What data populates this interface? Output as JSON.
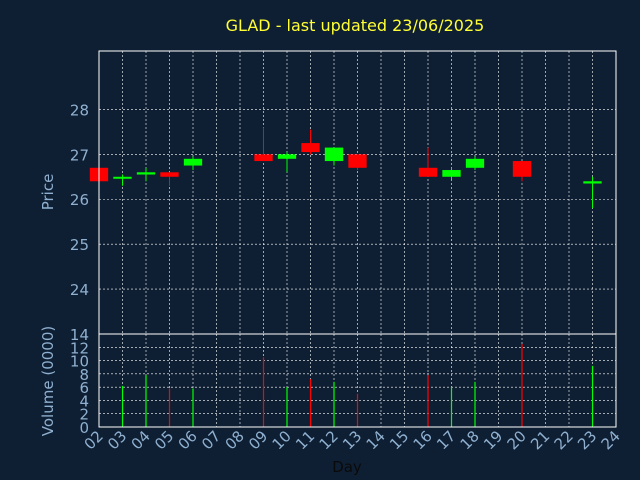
{
  "colors": {
    "background": "#0f1f33",
    "frame": "#ffffff",
    "grid": "#ffffff",
    "up": "#00ff00",
    "down": "#ff0000",
    "title": "#ffff33",
    "tick_text": "#8fb0d0",
    "xlabel_text": "#0a0a0a"
  },
  "chart_data": [
    {
      "type": "candlestick",
      "title": "GLAD - last updated 23/06/2025",
      "ylabel": "Price",
      "xlabel": "",
      "ylim": [
        23,
        29.3
      ],
      "yticks": [
        24,
        25,
        26,
        27,
        28
      ],
      "grid": true,
      "candles": [
        {
          "day": "02",
          "open": 26.7,
          "high": 26.7,
          "low": 26.4,
          "close": 26.4
        },
        {
          "day": "03",
          "open": 26.5,
          "high": 26.55,
          "low": 26.3,
          "close": 26.5
        },
        {
          "day": "04",
          "open": 26.55,
          "high": 26.7,
          "low": 26.4,
          "close": 26.6
        },
        {
          "day": "05",
          "open": 26.6,
          "high": 26.6,
          "low": 26.3,
          "close": 26.5
        },
        {
          "day": "06",
          "open": 26.75,
          "high": 26.95,
          "low": 26.65,
          "close": 26.9
        },
        {
          "day": "09",
          "open": 27.0,
          "high": 27.6,
          "low": 26.85,
          "close": 26.85
        },
        {
          "day": "10",
          "open": 26.9,
          "high": 27.05,
          "low": 26.6,
          "close": 27.0
        },
        {
          "day": "11",
          "open": 27.25,
          "high": 27.55,
          "low": 27.0,
          "close": 27.05
        },
        {
          "day": "12",
          "open": 26.85,
          "high": 27.15,
          "low": 26.75,
          "close": 27.15
        },
        {
          "day": "13",
          "open": 27.0,
          "high": 27.0,
          "low": 26.65,
          "close": 26.7
        },
        {
          "day": "16",
          "open": 26.7,
          "high": 27.15,
          "low": 26.5,
          "close": 26.5
        },
        {
          "day": "17",
          "open": 26.5,
          "high": 26.7,
          "low": 26.45,
          "close": 26.65
        },
        {
          "day": "18",
          "open": 26.7,
          "high": 26.95,
          "low": 26.65,
          "close": 26.9
        },
        {
          "day": "20",
          "open": 26.85,
          "high": 26.85,
          "low": 26.4,
          "close": 26.5
        },
        {
          "day": "23",
          "open": 26.35,
          "high": 26.5,
          "low": 25.8,
          "close": 26.4
        }
      ]
    },
    {
      "type": "bar",
      "ylabel": "Volume (0000)",
      "xlabel": "Day",
      "ylim": [
        0,
        14
      ],
      "yticks": [
        0,
        2,
        4,
        6,
        8,
        10,
        12,
        14
      ],
      "grid": true,
      "categories": [
        "02",
        "03",
        "04",
        "05",
        "06",
        "07",
        "08",
        "09",
        "10",
        "11",
        "12",
        "13",
        "14",
        "15",
        "16",
        "17",
        "18",
        "19",
        "20",
        "21",
        "22",
        "23",
        "24"
      ],
      "bars": [
        {
          "day": "03",
          "value": 6.2,
          "direction": "up"
        },
        {
          "day": "04",
          "value": 7.8,
          "direction": "up"
        },
        {
          "day": "05",
          "value": 5.8,
          "direction": "down"
        },
        {
          "day": "06",
          "value": 5.8,
          "direction": "up"
        },
        {
          "day": "09",
          "value": 10.5,
          "direction": "down"
        },
        {
          "day": "10",
          "value": 6.0,
          "direction": "up"
        },
        {
          "day": "11",
          "value": 7.2,
          "direction": "down"
        },
        {
          "day": "12",
          "value": 6.8,
          "direction": "up"
        },
        {
          "day": "13",
          "value": 5.0,
          "direction": "down"
        },
        {
          "day": "16",
          "value": 7.8,
          "direction": "down"
        },
        {
          "day": "17",
          "value": 6.0,
          "direction": "up"
        },
        {
          "day": "18",
          "value": 6.8,
          "direction": "up"
        },
        {
          "day": "20",
          "value": 12.5,
          "direction": "down"
        },
        {
          "day": "23",
          "value": 9.2,
          "direction": "up"
        }
      ]
    }
  ]
}
